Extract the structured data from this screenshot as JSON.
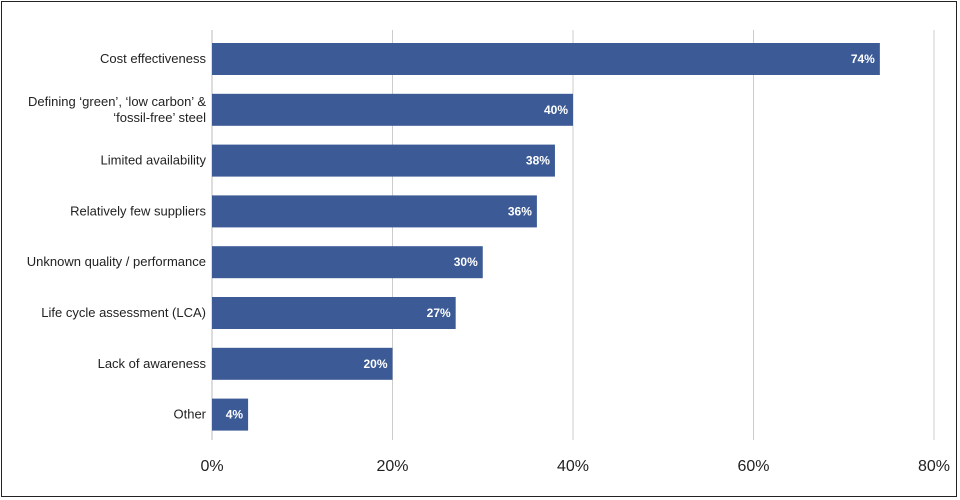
{
  "chart_data": {
    "type": "bar",
    "orientation": "horizontal",
    "categories": [
      [
        "Cost effectiveness"
      ],
      [
        "Defining ‘green’, ‘low carbon’ &",
        "‘fossil-free’ steel"
      ],
      [
        "Limited availability"
      ],
      [
        "Relatively few suppliers"
      ],
      [
        "Unknown quality / performance"
      ],
      [
        "Life cycle assessment (LCA)"
      ],
      [
        "Lack of awareness"
      ],
      [
        "Other"
      ]
    ],
    "values": [
      74,
      40,
      38,
      36,
      30,
      27,
      20,
      4
    ],
    "value_labels": [
      "74%",
      "40%",
      "38%",
      "36%",
      "30%",
      "27%",
      "20%",
      "4%"
    ],
    "xlim": [
      0,
      80
    ],
    "xticks": [
      0,
      20,
      40,
      60,
      80
    ],
    "xtick_labels": [
      "0%",
      "20%",
      "40%",
      "60%",
      "80%"
    ],
    "grid": "vertical",
    "colors": {
      "bar": "#3b5a96",
      "grid": "#cccccc",
      "label": "#222222",
      "data_label": "#ffffff"
    }
  }
}
